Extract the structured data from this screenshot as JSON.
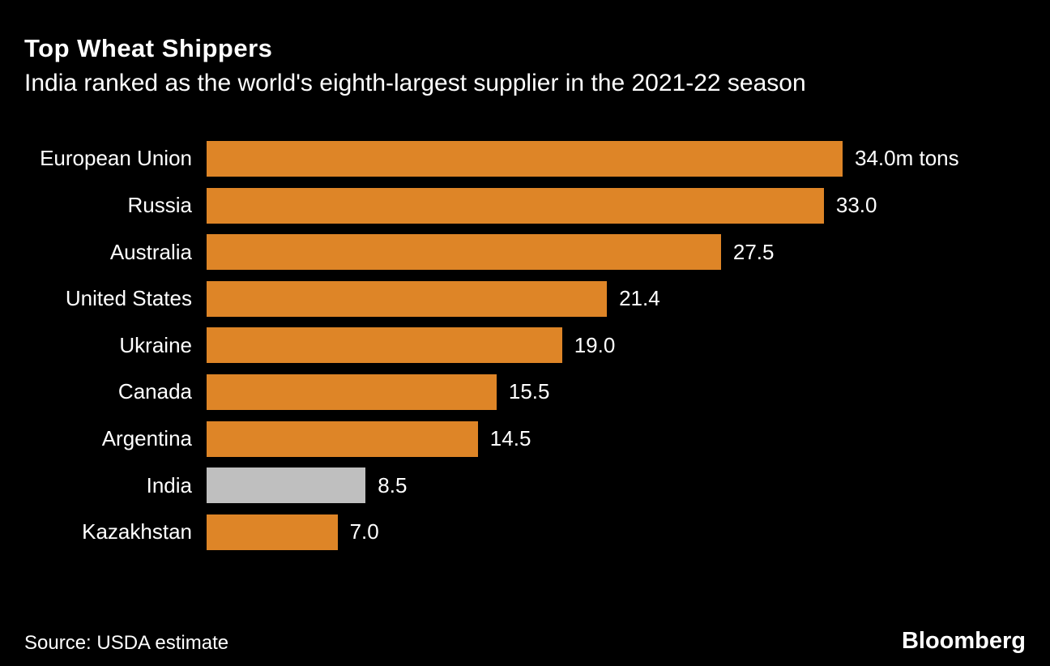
{
  "title": "Top Wheat Shippers",
  "subtitle": "India ranked as the world's eighth-largest supplier in the 2021-22 season",
  "source": "Source: USDA estimate",
  "brand": "Bloomberg",
  "colors": {
    "background": "#000000",
    "text": "#ffffff",
    "bar": "#DE8527",
    "highlight_bar": "#BFBFBF"
  },
  "chart_data": {
    "type": "bar",
    "orientation": "horizontal",
    "title": "Top Wheat Shippers",
    "subtitle": "India ranked as the world's eighth-largest supplier in the 2021-22 season",
    "unit": "m tons",
    "xlim": [
      0,
      34
    ],
    "grid": false,
    "legend": "none",
    "categories": [
      "European Union",
      "Russia",
      "Australia",
      "United States",
      "Ukraine",
      "Canada",
      "Argentina",
      "India",
      "Kazakhstan"
    ],
    "values": [
      34.0,
      33.0,
      27.5,
      21.4,
      19.0,
      15.5,
      14.5,
      8.5,
      7.0
    ],
    "value_labels": [
      "34.0m tons",
      "33.0",
      "27.5",
      "21.4",
      "19.0",
      "15.5",
      "14.5",
      "8.5",
      "7.0"
    ],
    "highlight_category": "India"
  }
}
